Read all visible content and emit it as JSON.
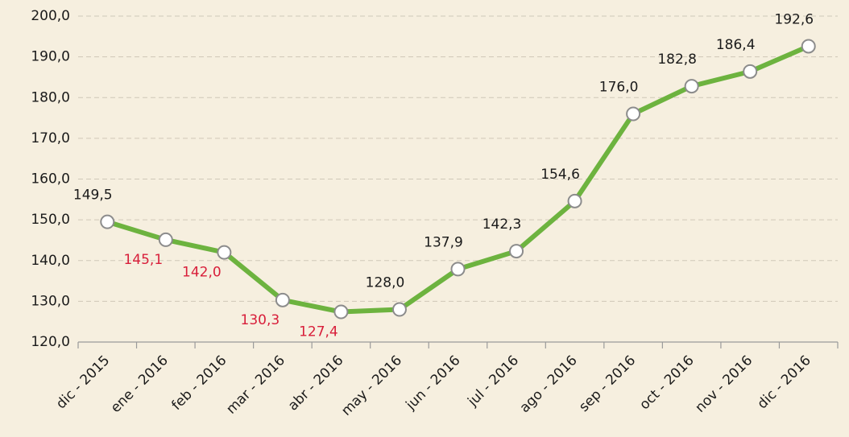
{
  "chart_data": {
    "type": "line",
    "categories": [
      "dic - 2015",
      "ene - 2016",
      "feb - 2016",
      "mar - 2016",
      "abr - 2016",
      "may - 2016",
      "jun - 2016",
      "jul - 2016",
      "ago - 2016",
      "sep - 2016",
      "oct - 2016",
      "nov - 2016",
      "dic - 2016"
    ],
    "values": [
      149.5,
      145.1,
      142.0,
      130.3,
      127.4,
      128.0,
      137.9,
      142.3,
      154.6,
      176.0,
      182.8,
      186.4,
      192.6
    ],
    "value_labels": [
      "149,5",
      "145,1",
      "142,0",
      "130,3",
      "127,4",
      "128,0",
      "137,9",
      "142,3",
      "154,6",
      "176,0",
      "182,8",
      "186,4",
      "192,6"
    ],
    "color": "#6db33f",
    "value_label_color": "#1a1a1a",
    "decrease_label_color": "#d81e3a",
    "ylim": [
      120,
      200
    ],
    "yticks": [
      {
        "value": 120,
        "label": "120,0"
      },
      {
        "value": 130,
        "label": "130,0"
      },
      {
        "value": 140,
        "label": "140,0"
      },
      {
        "value": 150,
        "label": "150,0"
      },
      {
        "value": 160,
        "label": "160,0"
      },
      {
        "value": 170,
        "label": "170,0"
      },
      {
        "value": 180,
        "label": "180,0"
      },
      {
        "value": 190,
        "label": "190,0"
      },
      {
        "value": 200,
        "label": "200,0"
      }
    ],
    "grid": true
  }
}
